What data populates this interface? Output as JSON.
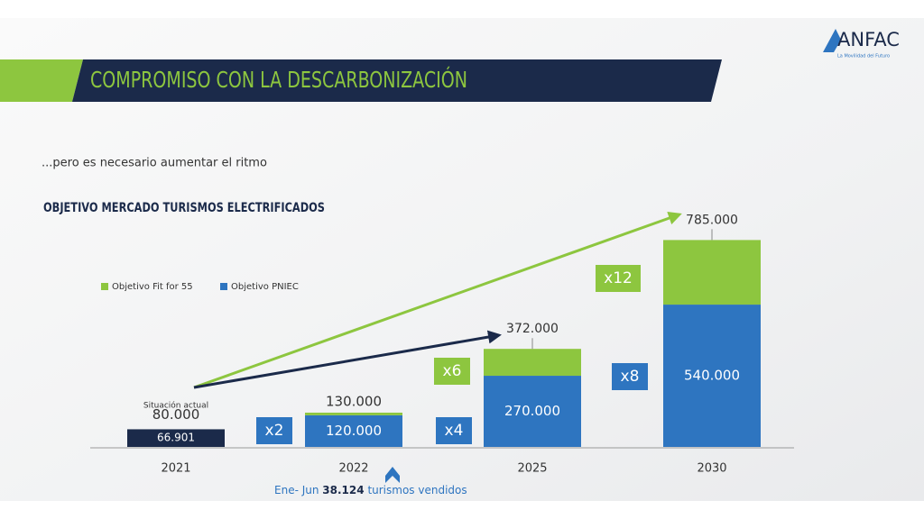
{
  "header": {
    "title": "COMPROMISO CON LA DESCARBONIZACIÓN",
    "logo": "ANFAC",
    "logo_tagline": "La Movilidad del Futuro"
  },
  "subtitle": "...pero es necesario aumentar el ritmo",
  "chart_data": {
    "type": "bar",
    "stacked": true,
    "title": "OBJETIVO MERCADO TURISMOS ELECTRIFICADOS",
    "categories": [
      "2021",
      "2022",
      "2025",
      "2030"
    ],
    "ylim": [
      0,
      800000
    ],
    "series": [
      {
        "name": "Objetivo PNIEC",
        "color": "#2e75c0",
        "values": [
          null,
          120000,
          270000,
          540000
        ],
        "value_labels": [
          null,
          "120.000",
          "270.000",
          "540.000"
        ]
      },
      {
        "name": "Objetivo Fit for 55",
        "color": "#8dc63f",
        "values": [
          null,
          10000,
          102000,
          245000
        ]
      }
    ],
    "totals": {
      "values": [
        80000,
        130000,
        372000,
        785000
      ],
      "value_labels": [
        "80.000",
        "130.000",
        "372.000",
        "785.000"
      ]
    },
    "current": {
      "label": "Situación actual",
      "value": 66901,
      "value_label": "66.901",
      "color": "#1b2a4a"
    },
    "multipliers": [
      {
        "text": "x2",
        "color": "#2e75c0"
      },
      {
        "text": "x4",
        "color": "#2e75c0"
      },
      {
        "text": "x6",
        "color": "#8dc63f"
      },
      {
        "text": "x8",
        "color": "#2e75c0"
      },
      {
        "text": "x12",
        "color": "#8dc63f"
      }
    ]
  },
  "footnote": {
    "period": "Ene- Jun",
    "value": "38.124",
    "text": "turismos vendidos"
  }
}
